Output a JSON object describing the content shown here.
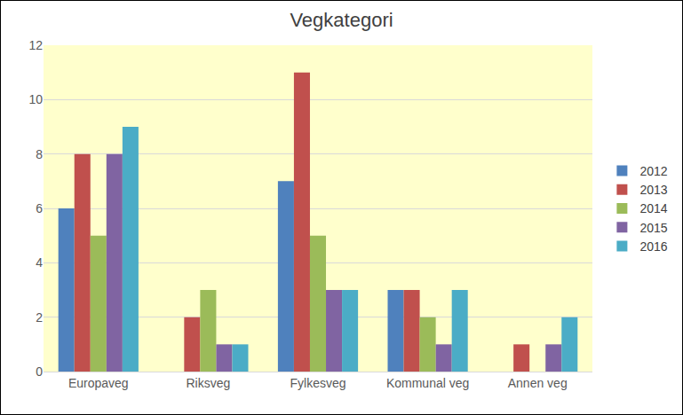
{
  "chart_data": {
    "type": "bar",
    "title": "Vegkategori",
    "categories": [
      "Europaveg",
      "Riksveg",
      "Fylkesveg",
      "Kommunal veg",
      "Annen veg"
    ],
    "series": [
      {
        "name": "2012",
        "color": "#4F81BD",
        "values": [
          6,
          0,
          7,
          3,
          0
        ]
      },
      {
        "name": "2013",
        "color": "#C0504D",
        "values": [
          8,
          2,
          11,
          3,
          1
        ]
      },
      {
        "name": "2014",
        "color": "#9BBB59",
        "values": [
          5,
          3,
          5,
          2,
          0
        ]
      },
      {
        "name": "2015",
        "color": "#8064A2",
        "values": [
          8,
          1,
          3,
          1,
          1
        ]
      },
      {
        "name": "2016",
        "color": "#4BACC6",
        "values": [
          9,
          1,
          3,
          3,
          2
        ]
      }
    ],
    "ylim": [
      0,
      12
    ],
    "yticks": [
      0,
      2,
      4,
      6,
      8,
      10,
      12
    ],
    "grid": true,
    "legend": "right"
  }
}
